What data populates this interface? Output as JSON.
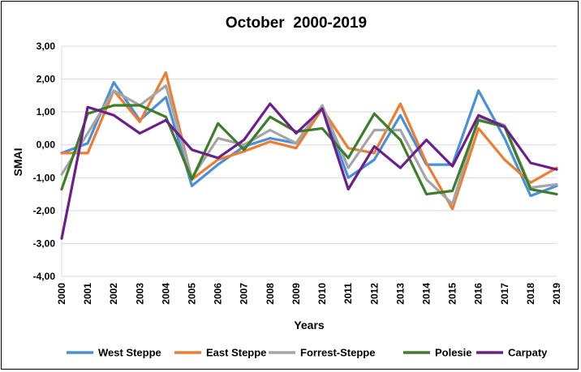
{
  "chart_data": {
    "type": "line",
    "title": "October  2000-2019",
    "xlabel": "Years",
    "ylabel": "SMAI",
    "ylim": [
      -4,
      3
    ],
    "y_ticks": [
      3,
      2,
      1,
      0,
      -1,
      -2,
      -3,
      -4
    ],
    "y_tick_labels": [
      "3,00",
      "2,00",
      "1,00",
      "0,00",
      "-1,00",
      "-2,00",
      "-3,00",
      "-4,00"
    ],
    "grid": true,
    "legend_position": "bottom",
    "categories": [
      "2000",
      "2001",
      "2002",
      "2003",
      "2004",
      "2005",
      "2006",
      "2007",
      "2008",
      "2009",
      "2010",
      "2011",
      "2012",
      "2013",
      "2014",
      "2015",
      "2016",
      "2017",
      "2018",
      "2019"
    ],
    "series": [
      {
        "name": "West Steppe",
        "color": "#4a90d9",
        "values": [
          -0.25,
          0.05,
          1.9,
          0.75,
          1.45,
          -1.25,
          -0.6,
          -0.05,
          0.2,
          0.05,
          1.15,
          -1.0,
          -0.45,
          0.9,
          -0.6,
          -0.6,
          1.65,
          0.2,
          -1.55,
          -1.25
        ]
      },
      {
        "name": "East Steppe",
        "color": "#ed7d31",
        "values": [
          -0.25,
          -0.25,
          1.65,
          0.7,
          2.2,
          -1.05,
          -0.45,
          -0.2,
          0.1,
          -0.1,
          1.1,
          -0.1,
          -0.25,
          1.25,
          -0.55,
          -1.95,
          0.5,
          -0.45,
          -1.15,
          -0.7
        ]
      },
      {
        "name": "Forrest-Steppe",
        "color": "#a5a5a5",
        "values": [
          -0.9,
          0.35,
          1.65,
          1.2,
          1.8,
          -1.0,
          0.2,
          0.0,
          0.45,
          0.05,
          1.2,
          -0.7,
          0.45,
          0.45,
          -1.05,
          -1.8,
          0.85,
          0.6,
          -1.3,
          -1.2
        ]
      },
      {
        "name": "Polesie",
        "color": "#3e7d2a",
        "values": [
          -1.35,
          0.95,
          1.2,
          1.2,
          0.85,
          -1.05,
          0.65,
          -0.15,
          0.85,
          0.4,
          0.5,
          -0.4,
          0.95,
          0.15,
          -1.5,
          -1.4,
          0.75,
          0.55,
          -1.35,
          -1.5
        ]
      },
      {
        "name": "Carpaty",
        "color": "#6b1f8a",
        "values": [
          -2.85,
          1.15,
          0.9,
          0.35,
          0.75,
          -0.15,
          -0.4,
          0.15,
          1.25,
          0.35,
          1.1,
          -1.35,
          -0.05,
          -0.7,
          0.15,
          -0.65,
          0.9,
          0.55,
          -0.55,
          -0.75
        ]
      }
    ]
  }
}
